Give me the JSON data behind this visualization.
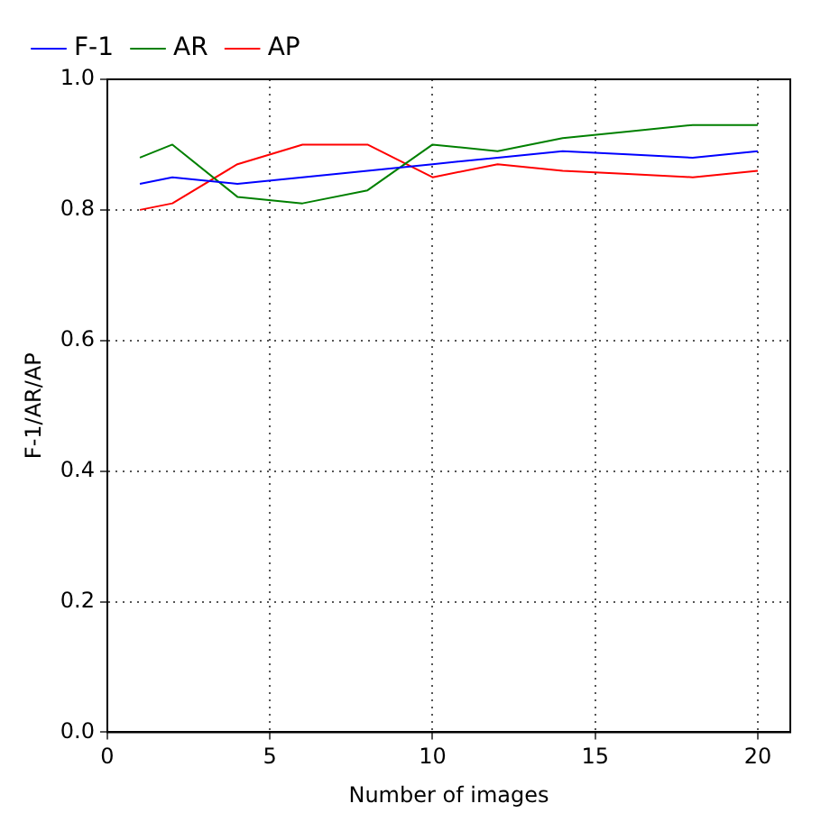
{
  "chart_data": {
    "type": "line",
    "xlabel": "Number of images",
    "ylabel": "F-1/AR/AP",
    "xlim": [
      0,
      21
    ],
    "xticks": [
      0,
      5,
      10,
      15,
      20
    ],
    "ylim": [
      0,
      1
    ],
    "yticks": [
      {
        "value": 0,
        "label": "0.0"
      },
      {
        "value": 0.2,
        "label": "0.2"
      },
      {
        "value": 0.4,
        "label": "0.4"
      },
      {
        "value": 0.6,
        "label": "0.6"
      },
      {
        "value": 0.8,
        "label": "0.8"
      },
      {
        "value": 1,
        "label": "1.0"
      }
    ],
    "grid": true,
    "legend": "top left",
    "marker": "none",
    "line_style": "solid",
    "x": [
      1,
      2,
      4,
      6,
      8,
      10,
      12,
      14,
      16,
      18,
      20
    ],
    "series": [
      {
        "name": "F-1",
        "color": "#0000ff",
        "values": [
          0.84,
          0.85,
          0.84,
          0.85,
          0.86,
          0.87,
          0.88,
          0.89,
          0.885,
          0.88,
          0.89
        ]
      },
      {
        "name": "AR",
        "color": "#008000",
        "values": [
          0.88,
          0.9,
          0.82,
          0.81,
          0.83,
          0.9,
          0.89,
          0.91,
          0.92,
          0.93,
          0.93
        ]
      },
      {
        "name": "AP",
        "color": "#ff0000",
        "values": [
          0.8,
          0.81,
          0.87,
          0.9,
          0.9,
          0.85,
          0.87,
          0.86,
          0.855,
          0.85,
          0.86
        ]
      }
    ]
  }
}
